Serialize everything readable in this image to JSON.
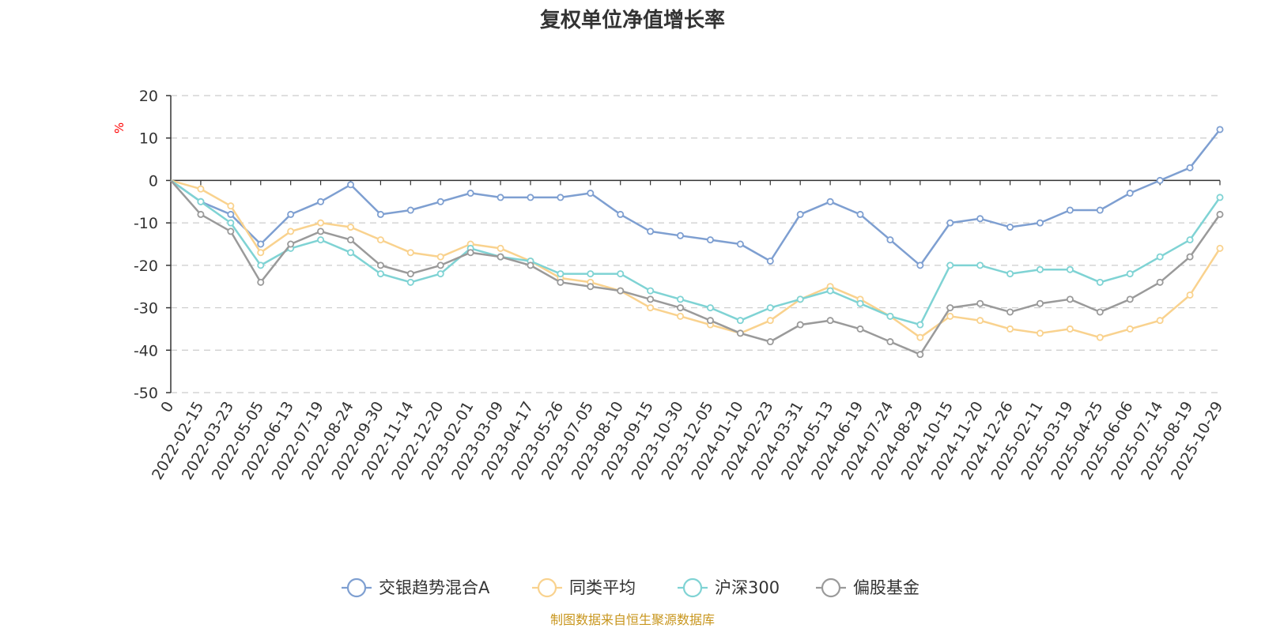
{
  "chart_data": {
    "type": "line",
    "title": "复权单位净值增长率",
    "ylabel": "%",
    "ylim": [
      -50,
      20
    ],
    "yticks": [
      20,
      10,
      0,
      -10,
      -20,
      -30,
      -40,
      -50
    ],
    "xlabel": "",
    "x_start_label": "0",
    "x": [
      "2022-02-15",
      "2022-03-23",
      "2022-05-05",
      "2022-06-13",
      "2022-07-19",
      "2022-08-24",
      "2022-09-30",
      "2022-11-14",
      "2022-12-20",
      "2023-02-01",
      "2023-03-09",
      "2023-04-17",
      "2023-05-26",
      "2023-07-05",
      "2023-08-10",
      "2023-09-15",
      "2023-10-30",
      "2023-12-05",
      "2024-01-10",
      "2024-02-23",
      "2024-03-31",
      "2024-05-13",
      "2024-06-19",
      "2024-07-24",
      "2024-08-29",
      "2024-10-15",
      "2024-11-20",
      "2024-12-26",
      "2025-02-11",
      "2025-03-19",
      "2025-04-25",
      "2025-06-06",
      "2025-07-14",
      "2025-08-19",
      "2025-10-29"
    ],
    "grid": true,
    "legend_position": "bottom",
    "series": [
      {
        "name": "交银趋势混合A",
        "color": "#7e9fd1",
        "values": [
          -5,
          -8,
          -15,
          -8,
          -5,
          -1,
          -8,
          -7,
          -5,
          -3,
          -4,
          -4,
          -4,
          -3,
          -8,
          -12,
          -13,
          -14,
          -15,
          -19,
          -8,
          -5,
          -8,
          -14,
          -20,
          -10,
          -9,
          -11,
          -10,
          -7,
          -7,
          -3,
          0,
          3,
          12
        ]
      },
      {
        "name": "同类平均",
        "color": "#f9d28e",
        "values": [
          -2,
          -6,
          -17,
          -12,
          -10,
          -11,
          -14,
          -17,
          -18,
          -15,
          -16,
          -19,
          -23,
          -24,
          -26,
          -30,
          -32,
          -34,
          -36,
          -33,
          -28,
          -25,
          -28,
          -32,
          -37,
          -32,
          -33,
          -35,
          -36,
          -35,
          -37,
          -35,
          -33,
          -27,
          -16
        ]
      },
      {
        "name": "沪深300",
        "color": "#7fd3d4",
        "values": [
          -5,
          -10,
          -20,
          -16,
          -14,
          -17,
          -22,
          -24,
          -22,
          -16,
          -18,
          -19,
          -22,
          -22,
          -22,
          -26,
          -28,
          -30,
          -33,
          -30,
          -28,
          -26,
          -29,
          -32,
          -34,
          -20,
          -20,
          -22,
          -21,
          -21,
          -24,
          -22,
          -18,
          -14,
          -4
        ]
      },
      {
        "name": "偏股基金",
        "color": "#9a9a9a",
        "values": [
          -8,
          -12,
          -24,
          -15,
          -12,
          -14,
          -20,
          -22,
          -20,
          -17,
          -18,
          -20,
          -24,
          -25,
          -26,
          -28,
          -30,
          -33,
          -36,
          -38,
          -34,
          -33,
          -35,
          -38,
          -41,
          -30,
          -29,
          -31,
          -29,
          -28,
          -31,
          -28,
          -24,
          -18,
          -8
        ]
      }
    ]
  },
  "footer": {
    "source": "制图数据来自恒生聚源数据库"
  }
}
